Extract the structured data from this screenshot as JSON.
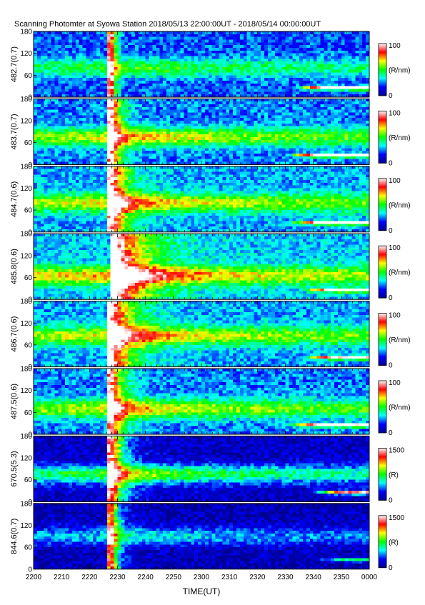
{
  "chart_data": {
    "type": "heatmap",
    "title": "Scanning Photomter at Syowa Station 2018/05/13 22:00:00UT - 2018/05/14 00:00:00UT",
    "xlabel": "TIME(UT)",
    "x_tick_labels": [
      "2200",
      "2210",
      "2220",
      "2230",
      "2240",
      "2250",
      "2300",
      "2310",
      "2320",
      "2330",
      "2340",
      "2350",
      "0000"
    ],
    "x_tick_minutes": [
      0,
      10,
      20,
      30,
      40,
      50,
      60,
      70,
      80,
      90,
      100,
      110,
      120
    ],
    "ylim": [
      0,
      180
    ],
    "y_ticks": [
      0,
      60,
      120,
      180
    ],
    "colormap": [
      "#00008f",
      "#0000ff",
      "#00ffff",
      "#00ff00",
      "#ffff00",
      "#ff0000",
      "#ffffff"
    ],
    "panels": [
      {
        "ylabel": "482.7(0.7)",
        "colorbar_unit": "(R/nm)",
        "colorbar_range": [
          0,
          100
        ],
        "background_level": 0.22,
        "emission_band_level": 0.3,
        "band_altitude": 80,
        "burst_time_min": 28,
        "burst_peak_level": 0.75,
        "burst_decay_min": 1.5,
        "late_band_altitude": 25,
        "late_band_start_min": 92,
        "late_band_peak_level": 0.95
      },
      {
        "ylabel": "483.7(0.7)",
        "colorbar_unit": "(R/nm)",
        "colorbar_range": [
          0,
          100
        ],
        "background_level": 0.25,
        "emission_band_level": 0.45,
        "band_altitude": 75,
        "burst_time_min": 28,
        "burst_peak_level": 0.88,
        "burst_decay_min": 3,
        "late_band_altitude": 25,
        "late_band_start_min": 90,
        "late_band_peak_level": 0.92
      },
      {
        "ylabel": "484.7(0.6)",
        "colorbar_unit": "(R/nm)",
        "colorbar_range": [
          0,
          100
        ],
        "background_level": 0.28,
        "emission_band_level": 0.45,
        "band_altitude": 80,
        "burst_time_min": 28,
        "burst_peak_level": 0.85,
        "burst_decay_min": 5,
        "late_band_altitude": 25,
        "late_band_start_min": 90,
        "late_band_peak_level": 0.85
      },
      {
        "ylabel": "485.8(0.6)",
        "colorbar_unit": "(R/nm)",
        "colorbar_range": [
          0,
          100
        ],
        "background_level": 0.3,
        "emission_band_level": 0.5,
        "band_altitude": 65,
        "burst_time_min": 29,
        "burst_peak_level": 0.95,
        "burst_decay_min": 10,
        "late_band_altitude": 25,
        "late_band_start_min": 95,
        "late_band_peak_level": 0.8
      },
      {
        "ylabel": "486.7(0.6)",
        "colorbar_unit": "(R/nm)",
        "colorbar_range": [
          0,
          100
        ],
        "background_level": 0.28,
        "emission_band_level": 0.45,
        "band_altitude": 85,
        "burst_time_min": 28,
        "burst_peak_level": 0.88,
        "burst_decay_min": 7,
        "late_band_altitude": 25,
        "late_band_start_min": 95,
        "late_band_peak_level": 0.8
      },
      {
        "ylabel": "487.5(0.6)",
        "colorbar_unit": "(R/nm)",
        "colorbar_range": [
          0,
          100
        ],
        "background_level": 0.25,
        "emission_band_level": 0.45,
        "band_altitude": 70,
        "burst_time_min": 28,
        "burst_peak_level": 0.82,
        "burst_decay_min": 4,
        "late_band_altitude": 25,
        "late_band_start_min": 90,
        "late_band_peak_level": 0.85
      },
      {
        "ylabel": "670.5(5.3)",
        "colorbar_unit": "(R)",
        "colorbar_range": [
          0,
          1500
        ],
        "background_level": 0.08,
        "emission_band_level": 0.5,
        "band_altitude": 75,
        "burst_time_min": 28,
        "burst_peak_level": 1.0,
        "burst_decay_min": 4,
        "late_band_altitude": 25,
        "late_band_start_min": 98,
        "late_band_peak_level": 0.9
      },
      {
        "ylabel": "844.6(0.7)",
        "colorbar_unit": "(R)",
        "colorbar_range": [
          0,
          1500
        ],
        "background_level": 0.06,
        "emission_band_level": 0.3,
        "band_altitude": 90,
        "burst_time_min": 28,
        "burst_peak_level": 0.9,
        "burst_decay_min": 2.5,
        "late_band_altitude": 25,
        "late_band_start_min": 100,
        "late_band_peak_level": 0.4
      }
    ]
  }
}
